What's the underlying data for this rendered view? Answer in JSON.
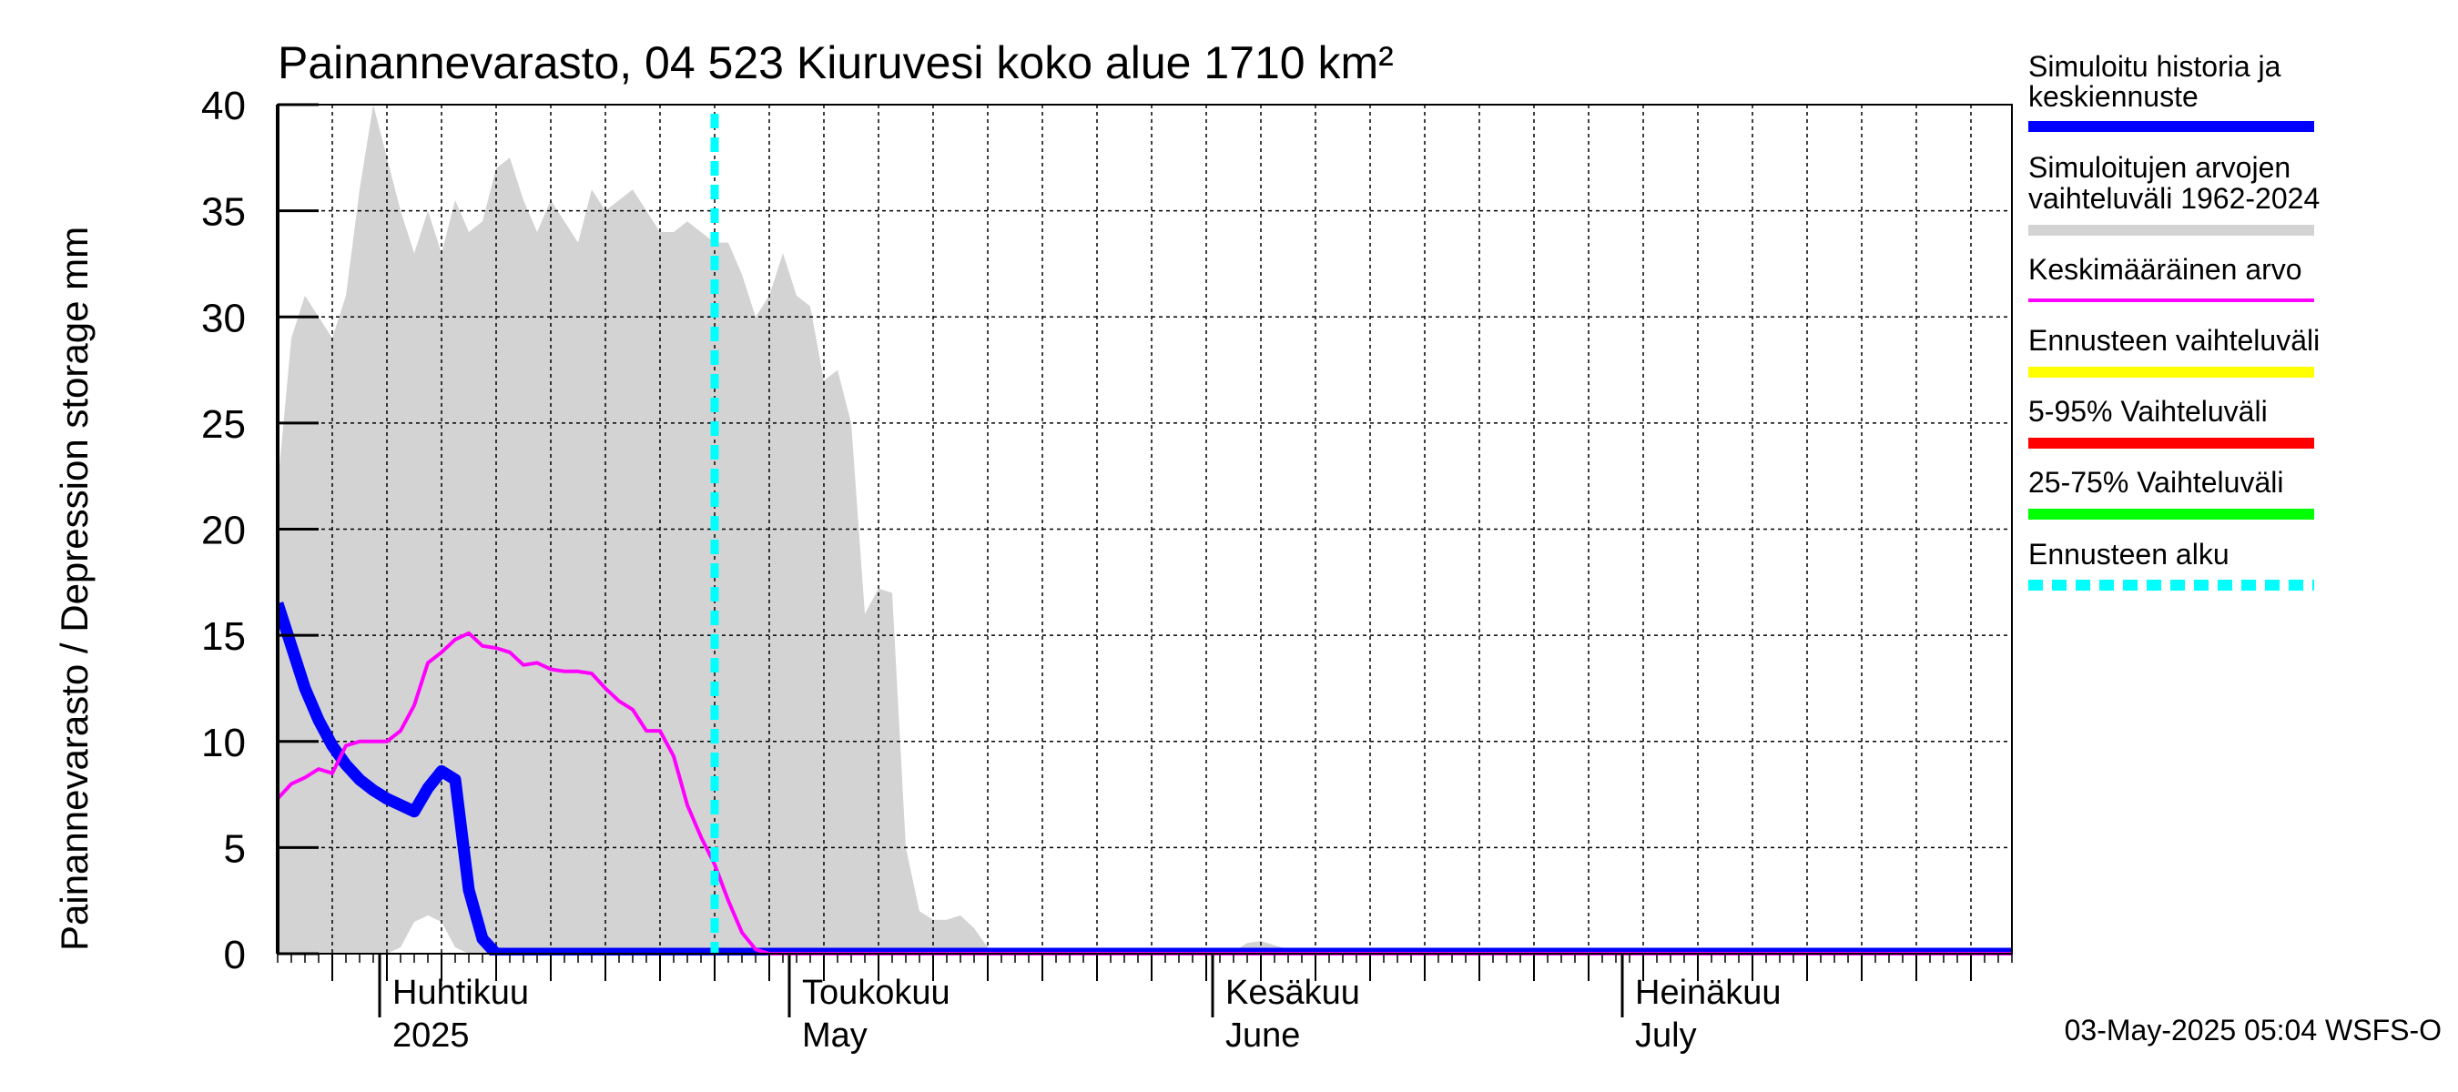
{
  "chart_data": {
    "type": "area",
    "title": "Painannevarasto, 04 523 Kiuruvesi koko alue 1710 km²",
    "ylabel": "Painannevarasto / Depression storage    mm",
    "ylim": [
      0,
      40
    ],
    "yticks": [
      "0",
      "5",
      "10",
      "15",
      "20",
      "25",
      "30",
      "35",
      "40"
    ],
    "xlim_days": [
      0,
      127
    ],
    "x_unit": "days since 2025-03-24",
    "months": [
      {
        "label1": "Huhtikuu",
        "label2": "2025",
        "day": 8
      },
      {
        "label1": "Toukokuu",
        "label2": "May",
        "day": 38
      },
      {
        "label1": "Kesäkuu",
        "label2": "June",
        "day": 69
      },
      {
        "label1": "Heinäkuu",
        "label2": "July",
        "day": 99
      }
    ],
    "month_boundaries": [
      8,
      38,
      69,
      99
    ],
    "forecast_start_day": 32,
    "range_band": {
      "name": "Simuloitujen arvojen vaihteluväli 1962-2024",
      "x": [
        0,
        1,
        2,
        3,
        4,
        5,
        6,
        7,
        8,
        9,
        10,
        11,
        12,
        13,
        14,
        15,
        16,
        17,
        18,
        19,
        20,
        21,
        22,
        23,
        24,
        25,
        26,
        27,
        28,
        29,
        30,
        31,
        32,
        33,
        34,
        35,
        36,
        37,
        38,
        39,
        40,
        41,
        42,
        43,
        44,
        45,
        46,
        47,
        48,
        49,
        50,
        51,
        52,
        53,
        54,
        55,
        56,
        57,
        58,
        59,
        60,
        61,
        62,
        63,
        64,
        65,
        66,
        67,
        68,
        69,
        70,
        71,
        72,
        73,
        74,
        75,
        76,
        127
      ],
      "upper": [
        22,
        29,
        31,
        30,
        29,
        31,
        36,
        40,
        37.5,
        35,
        33,
        35,
        33,
        35.5,
        34,
        34.5,
        37,
        37.5,
        35.5,
        34,
        35.5,
        34.5,
        33.5,
        36,
        35,
        35.5,
        36,
        35,
        34,
        34,
        34.5,
        34,
        33.5,
        33.5,
        32,
        30,
        31,
        33,
        31,
        30.5,
        27,
        27.5,
        25,
        16,
        17.2,
        17,
        5,
        2,
        1.6,
        1.6,
        1.8,
        1.2,
        0.3,
        0.1,
        0,
        0,
        0,
        0,
        0,
        0,
        0,
        0,
        0,
        0,
        0,
        0,
        0,
        0,
        0,
        0,
        0.1,
        0.5,
        0.6,
        0.4,
        0.2,
        0.1,
        0,
        0
      ],
      "lower": [
        0,
        0,
        0,
        0,
        0,
        0,
        0,
        0,
        0,
        0.3,
        1.5,
        1.8,
        1.5,
        0.3,
        0,
        0,
        0,
        0,
        0,
        0,
        0,
        0,
        0,
        0,
        0,
        0,
        0,
        0,
        0,
        0,
        0,
        0,
        0,
        0,
        0,
        0,
        0,
        0,
        0,
        0,
        0,
        0,
        0,
        0,
        0,
        0,
        0,
        0,
        0,
        0,
        0,
        0,
        0,
        0,
        0,
        0,
        0,
        0,
        0,
        0,
        0,
        0,
        0,
        0,
        0,
        0,
        0,
        0,
        0,
        0,
        0,
        0,
        0,
        0,
        0,
        0,
        0,
        0
      ]
    },
    "series": [
      {
        "name": "Keskimääräinen arvo",
        "x": [
          0,
          1,
          2,
          3,
          4,
          5,
          6,
          7,
          8,
          9,
          10,
          11,
          12,
          13,
          14,
          15,
          16,
          17,
          18,
          19,
          20,
          21,
          22,
          23,
          24,
          25,
          26,
          27,
          28,
          29,
          30,
          31,
          32,
          33,
          34,
          35,
          36,
          127
        ],
        "y": [
          7.3,
          8,
          8.3,
          8.7,
          8.5,
          9.8,
          10,
          10,
          10,
          10.5,
          11.7,
          13.7,
          14.2,
          14.8,
          15.1,
          14.5,
          14.4,
          14.2,
          13.6,
          13.7,
          13.4,
          13.3,
          13.3,
          13.2,
          12.5,
          11.9,
          11.5,
          10.5,
          10.5,
          9.3,
          7,
          5.5,
          4.2,
          2.5,
          1,
          0.2,
          0,
          0
        ]
      },
      {
        "name": "Simuloitu historia ja keskiennuste",
        "x": [
          0,
          1,
          2,
          3,
          4,
          5,
          6,
          7,
          8,
          9,
          10,
          11,
          12,
          13,
          14,
          15,
          16,
          17,
          18,
          127
        ],
        "y": [
          16.5,
          14.5,
          12.5,
          11,
          9.8,
          8.9,
          8.2,
          7.7,
          7.3,
          7,
          6.7,
          7.8,
          8.6,
          8.2,
          3,
          0.7,
          0,
          0,
          0,
          0
        ]
      }
    ],
    "legend": [
      {
        "label": "Simuloitu historia ja keskiennuste",
        "color": "#0000ff"
      },
      {
        "label": "Simuloitujen arvojen vaihteluväli 1962-2024",
        "color": "#d3d3d3"
      },
      {
        "label": "Keskimääräinen arvo",
        "color": "#ff00ff"
      },
      {
        "label": "Ennusteen vaihteluväli",
        "color": "#ffff00"
      },
      {
        "label": "5-95% Vaihteluväli",
        "color": "#ff0000"
      },
      {
        "label": "25-75% Vaihteluväli",
        "color": "#00ff00"
      },
      {
        "label": "Ennusteen alku",
        "color": "#00ffff"
      }
    ]
  },
  "colors": {
    "band": "#d3d3d3",
    "mean": "#ff00ff",
    "history": "#0000ff",
    "forecast_start": "#00ffff"
  },
  "footer": "03-May-2025 05:04 WSFS-O"
}
